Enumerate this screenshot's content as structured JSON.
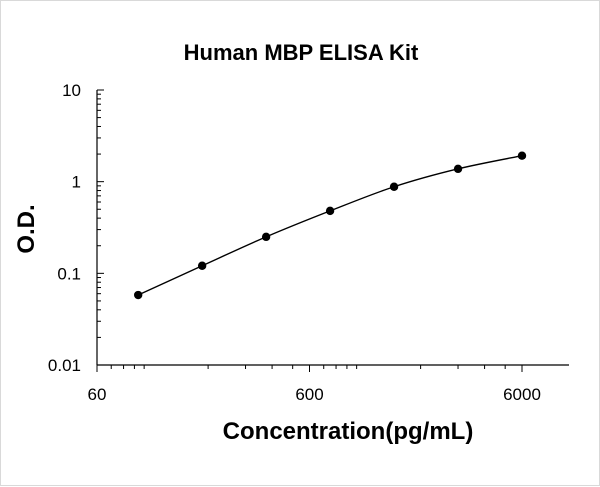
{
  "chart_data": {
    "type": "scatter",
    "title": "Human MBP ELISA Kit",
    "xlabel": "Concentration(pg/mL)",
    "ylabel": "O.D.",
    "x_scale": "log",
    "y_scale": "log",
    "xlim": [
      60,
      6000
    ],
    "ylim": [
      0.01,
      10
    ],
    "x_ticks": [
      60,
      600,
      6000
    ],
    "x_tick_labels": [
      "60",
      "600",
      "6000"
    ],
    "y_ticks": [
      0.01,
      0.1,
      1,
      10
    ],
    "y_tick_labels": [
      "0.01",
      "0.1",
      "1",
      "10"
    ],
    "grid": false,
    "legend": "none",
    "series": [
      {
        "x": [
          93.75,
          187.5,
          375,
          750,
          1500,
          3000,
          6000
        ],
        "y": [
          0.058,
          0.121,
          0.25,
          0.48,
          0.88,
          1.38,
          1.92
        ],
        "marker": "circle",
        "line": "smooth",
        "color": "#000000"
      }
    ]
  }
}
